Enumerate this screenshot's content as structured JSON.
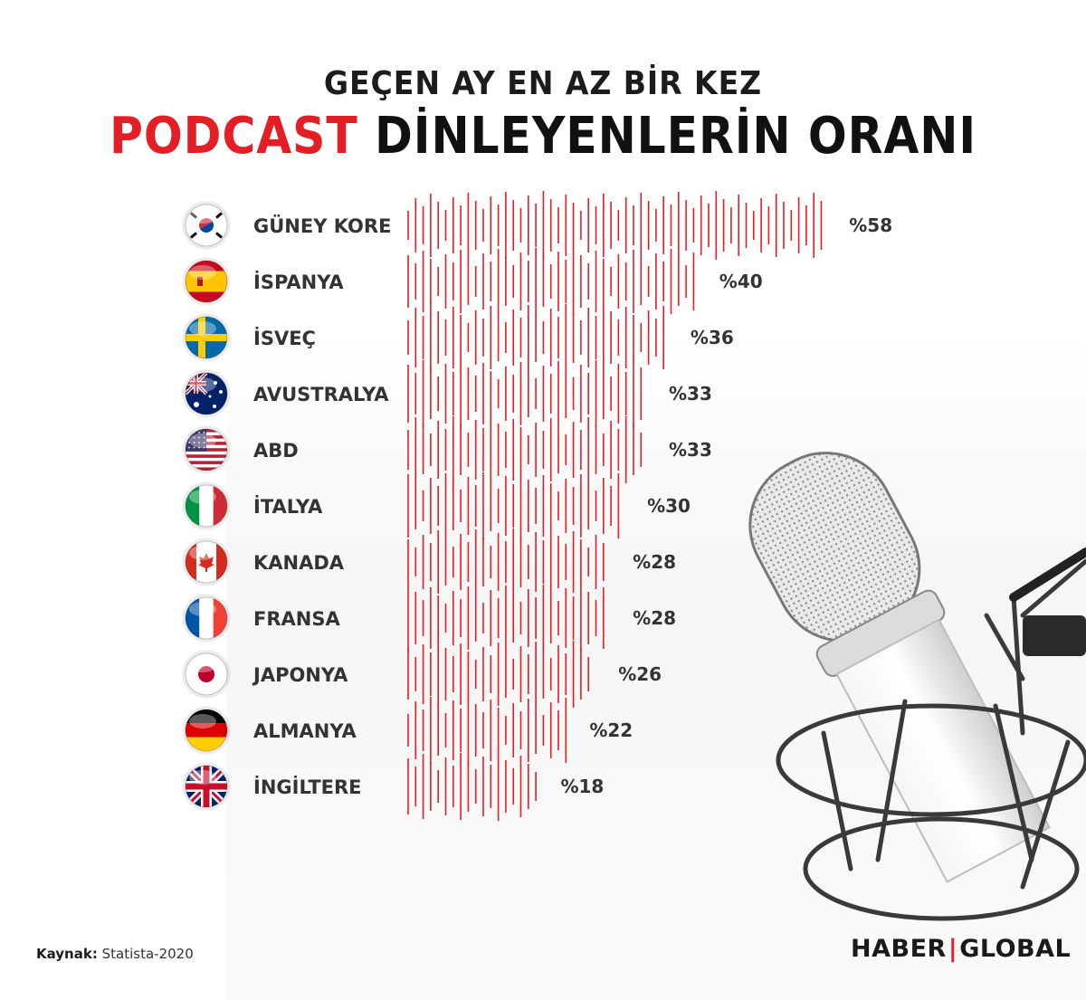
{
  "header": {
    "line1": "GEÇEN AY EN AZ BİR KEZ",
    "line2_accent": "PODCAST",
    "line2_rest": "DİNLEYENLERİN ORANI"
  },
  "colors": {
    "accent": "#e31e24",
    "text": "#333333"
  },
  "chart_data": {
    "type": "bar",
    "orientation": "horizontal",
    "categories": [
      "GÜNEY KORE",
      "İSPANYA",
      "İSVEÇ",
      "AVUSTRALYA",
      "ABD",
      "İTALYA",
      "KANADA",
      "FRANSA",
      "JAPONYA",
      "ALMANYA",
      "İNGİLTERE"
    ],
    "values": [
      58,
      40,
      36,
      33,
      33,
      30,
      28,
      28,
      26,
      22,
      18
    ],
    "value_labels": [
      "%58",
      "%40",
      "%36",
      "%33",
      "%33",
      "%30",
      "%28",
      "%28",
      "%26",
      "%22",
      "%18"
    ],
    "flags": [
      "south-korea-flag-icon",
      "spain-flag-icon",
      "sweden-flag-icon",
      "australia-flag-icon",
      "usa-flag-icon",
      "italy-flag-icon",
      "canada-flag-icon",
      "france-flag-icon",
      "japan-flag-icon",
      "germany-flag-icon",
      "uk-flag-icon"
    ],
    "bar_style": "audio-waveform",
    "grid": false
  },
  "footer": {
    "source_label": "Kaynak:",
    "source_value": "Statista-2020",
    "brand_left": "HABER",
    "brand_sep": "|",
    "brand_right": "GLOBAL"
  }
}
